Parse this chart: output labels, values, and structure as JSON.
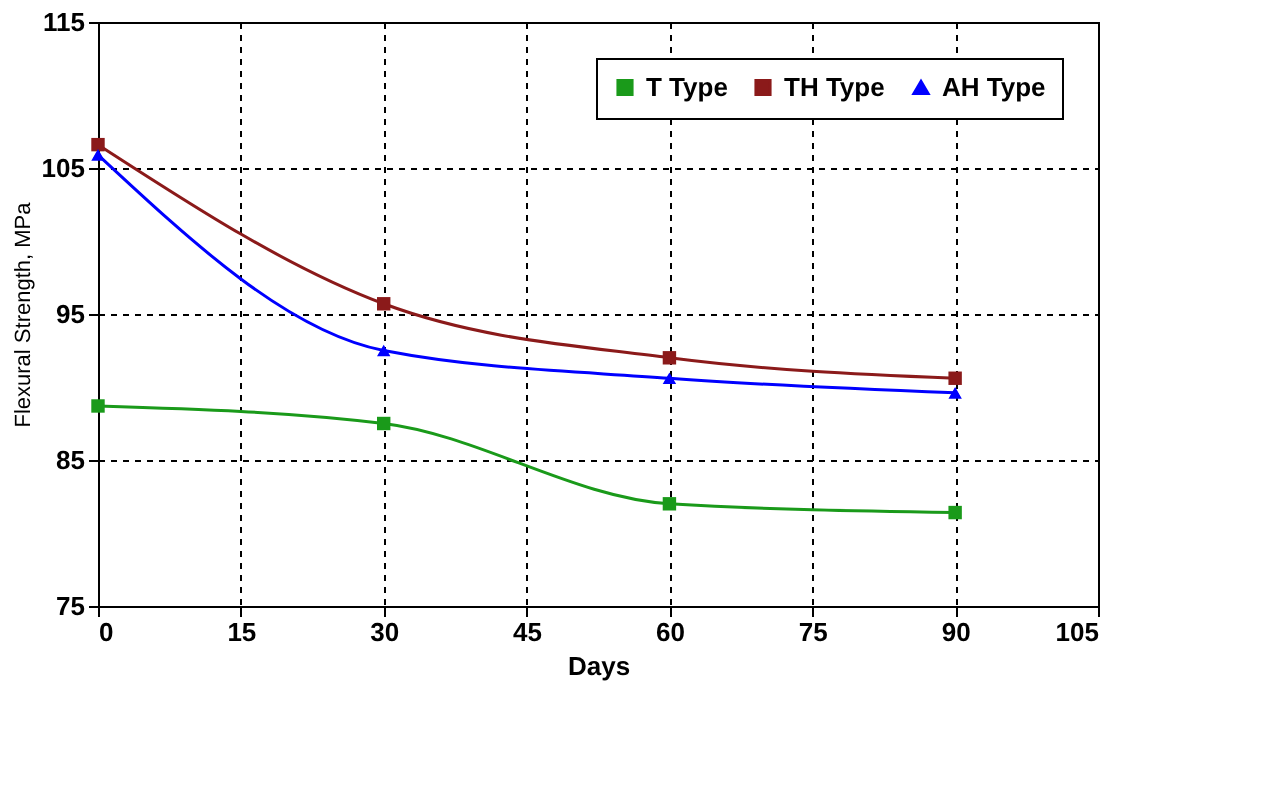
{
  "chart_data": {
    "type": "line",
    "xlabel": "Days",
    "ylabel": "Flexural Strength, MPa",
    "x": [
      0,
      30,
      60,
      90
    ],
    "series": [
      {
        "name": "T Type",
        "color": "#1a9a1a",
        "marker": "square",
        "values": [
          88.7,
          87.5,
          82.0,
          81.4
        ]
      },
      {
        "name": "TH Type",
        "color": "#8b1a1a",
        "marker": "square",
        "values": [
          106.6,
          95.7,
          92.0,
          90.6
        ]
      },
      {
        "name": "AH Type",
        "color": "#0000ff",
        "marker": "triangle",
        "values": [
          105.9,
          92.5,
          90.6,
          89.6
        ]
      }
    ],
    "xlim": [
      0,
      105
    ],
    "xticks": [
      0,
      15,
      30,
      45,
      60,
      75,
      90,
      105
    ],
    "ylim": [
      75,
      115
    ],
    "yticks": [
      75,
      85,
      95,
      105,
      115
    ],
    "grid": true,
    "legend": "top right",
    "line_style": "solid"
  }
}
